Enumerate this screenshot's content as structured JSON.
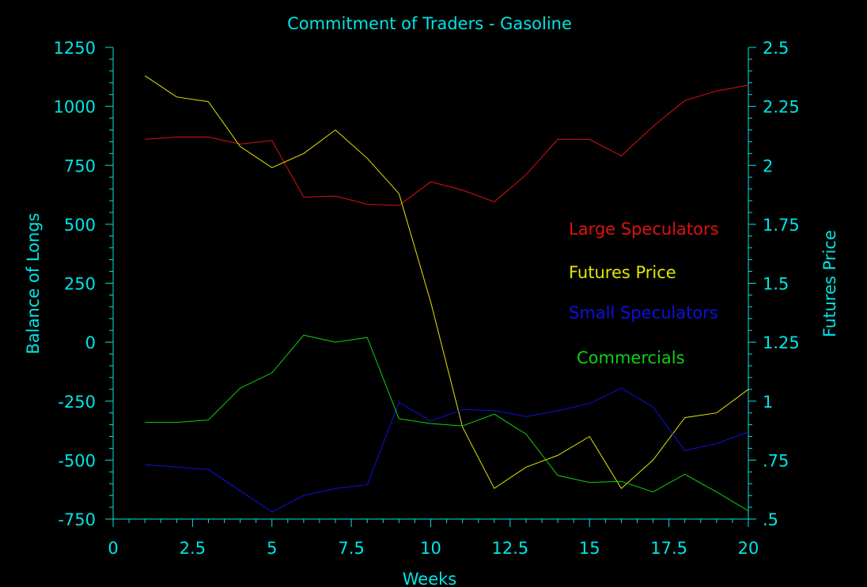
{
  "chart_data": {
    "type": "line",
    "title": "Commitment of Traders - Gasoline",
    "xlabel": "Weeks",
    "ylabel_left": "Balance of Longs",
    "ylabel_right": "Futures Price",
    "xlim": [
      0,
      20
    ],
    "ylim_left": [
      -750,
      1250
    ],
    "ylim_right": [
      0.5,
      2.5
    ],
    "x_ticks": [
      "0",
      "2.5",
      "5",
      "7.5",
      "10",
      "12.5",
      "15",
      "17.5",
      "20"
    ],
    "y_left_ticks": [
      "1250",
      "1000",
      "750",
      "500",
      "250",
      "0",
      "-250",
      "-500",
      "-750"
    ],
    "y_right_ticks": [
      "2.5",
      "2.25",
      "2",
      "1.75",
      "1.5",
      "1.25",
      "1",
      ".75",
      ".5"
    ],
    "x": [
      1,
      2,
      3,
      4,
      5,
      6,
      7,
      8,
      9,
      10,
      11,
      12,
      13,
      14,
      15,
      16,
      17,
      18,
      19,
      20
    ],
    "series": [
      {
        "name": "Large Speculators",
        "axis": "left",
        "color": "#e01010",
        "values": [
          860,
          870,
          870,
          840,
          855,
          615,
          620,
          585,
          580,
          680,
          645,
          595,
          710,
          860,
          860,
          790,
          915,
          1025,
          1065,
          1090
        ]
      },
      {
        "name": "Futures Price",
        "axis": "right",
        "color": "#e5e500",
        "values": [
          2.38,
          2.29,
          2.27,
          2.08,
          1.99,
          2.05,
          2.15,
          2.03,
          1.88,
          1.42,
          0.89,
          0.63,
          0.72,
          0.77,
          0.85,
          0.63,
          0.75,
          0.93,
          0.95,
          1.05
        ]
      },
      {
        "name": "Small Speculators",
        "axis": "left",
        "color": "#1010e0",
        "values": [
          -520,
          -530,
          -540,
          -630,
          -720,
          -650,
          -620,
          -605,
          -255,
          -335,
          -285,
          -290,
          -315,
          -290,
          -260,
          -195,
          -275,
          -460,
          -430,
          -380
        ]
      },
      {
        "name": "Commercials",
        "axis": "left",
        "color": "#10d010",
        "values": [
          -340,
          -340,
          -330,
          -195,
          -130,
          30,
          0,
          20,
          -325,
          -345,
          -355,
          -305,
          -390,
          -565,
          -595,
          -590,
          -635,
          -560,
          -635,
          -715
        ]
      }
    ],
    "legend": [
      "Large Speculators",
      "Futures Price",
      "Small Speculators",
      "Commercials"
    ],
    "legend_placement": "right-inside",
    "grid": false,
    "colors": {
      "background": "#000000",
      "axes": "#00e5e5"
    }
  }
}
